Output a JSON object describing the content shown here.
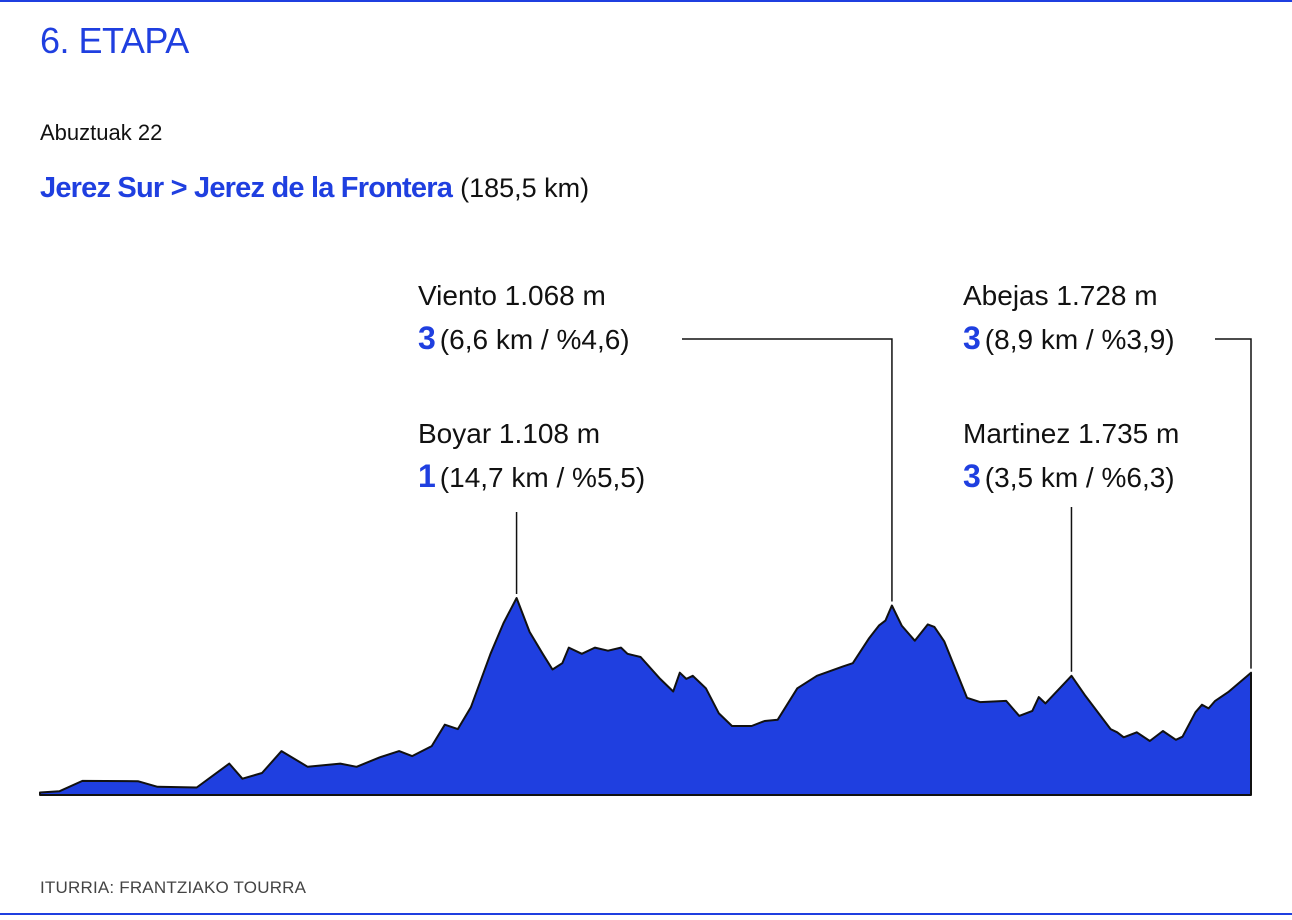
{
  "title": "6. ETAPA",
  "date": "Abuztuak 22",
  "route": {
    "name": "Jerez Sur > Jerez de la Frontera",
    "distance": "(185,5 km)"
  },
  "source": "ITURRIA: FRANTZIAKO TOURRA",
  "colors": {
    "accent": "#1f3fe0",
    "fill": "#1f3fe0",
    "text": "#111111"
  },
  "climbs": [
    {
      "name": "Viento 1.068 m",
      "category": "3",
      "details": "(6,6 km / %4,6)"
    },
    {
      "name": "Boyar 1.108 m",
      "category": "1",
      "details": "(14,7 km / %5,5)"
    },
    {
      "name": "Abejas 1.728 m",
      "category": "3",
      "details": "(8,9 km / %3,9)"
    },
    {
      "name": "Martinez 1.735 m",
      "category": "3",
      "details": "(3,5 km / %6,3)"
    }
  ],
  "chart_data": {
    "type": "area",
    "title": "6. ETAPA",
    "xlabel": "",
    "ylabel": "",
    "xlim": [
      0,
      185.5
    ],
    "grid": false,
    "series": [
      {
        "values": [
          [
            0,
            40
          ],
          [
            3,
            60
          ],
          [
            6.5,
            225
          ],
          [
            15,
            220
          ],
          [
            18,
            130
          ],
          [
            24,
            120
          ],
          [
            29,
            500
          ],
          [
            31,
            260
          ],
          [
            34,
            350
          ],
          [
            37,
            700
          ],
          [
            41,
            450
          ],
          [
            46,
            500
          ],
          [
            48.5,
            450
          ],
          [
            52,
            600
          ],
          [
            55,
            700
          ],
          [
            57,
            620
          ],
          [
            60,
            780
          ],
          [
            62,
            1120
          ],
          [
            64,
            1050
          ],
          [
            66,
            1400
          ],
          [
            69,
            2250
          ],
          [
            71,
            2740
          ],
          [
            73,
            3140
          ],
          [
            75,
            2600
          ],
          [
            77,
            2250
          ],
          [
            78.5,
            2000
          ],
          [
            80,
            2100
          ],
          [
            81,
            2350
          ],
          [
            83,
            2250
          ],
          [
            85,
            2350
          ],
          [
            87,
            2300
          ],
          [
            89,
            2350
          ],
          [
            90,
            2250
          ],
          [
            92,
            2200
          ],
          [
            95,
            1850
          ],
          [
            97,
            1650
          ],
          [
            98,
            1950
          ],
          [
            99,
            1850
          ],
          [
            100,
            1900
          ],
          [
            101,
            1800
          ],
          [
            102,
            1700
          ],
          [
            104,
            1300
          ],
          [
            106,
            1100
          ],
          [
            109,
            1100
          ],
          [
            111,
            1180
          ],
          [
            113,
            1200
          ],
          [
            116,
            1700
          ],
          [
            119,
            1900
          ],
          [
            123,
            2050
          ],
          [
            124.5,
            2100
          ],
          [
            127,
            2500
          ],
          [
            128.5,
            2700
          ],
          [
            129.5,
            2780
          ],
          [
            130.5,
            3020
          ],
          [
            132,
            2700
          ],
          [
            134,
            2460
          ],
          [
            136,
            2720
          ],
          [
            137,
            2680
          ],
          [
            138.5,
            2450
          ],
          [
            142,
            1550
          ],
          [
            144,
            1480
          ],
          [
            148,
            1500
          ],
          [
            150,
            1260
          ],
          [
            152,
            1340
          ],
          [
            153,
            1560
          ],
          [
            154,
            1460
          ],
          [
            158,
            1900
          ],
          [
            160,
            1600
          ],
          [
            164,
            1050
          ],
          [
            165,
            1000
          ],
          [
            166,
            920
          ],
          [
            168,
            1000
          ],
          [
            170,
            860
          ],
          [
            172,
            1020
          ],
          [
            174,
            880
          ],
          [
            175,
            930
          ],
          [
            177,
            1320
          ],
          [
            178,
            1440
          ],
          [
            179,
            1380
          ],
          [
            180,
            1500
          ],
          [
            182,
            1640
          ],
          [
            185.5,
            1950
          ]
        ]
      }
    ],
    "annotations": [
      {
        "label": "Boyar 1.108 m",
        "x": 73,
        "y": 3140
      },
      {
        "label": "Viento 1.068 m",
        "x": 130.5,
        "y": 3020
      },
      {
        "label": "Martinez 1.735 m",
        "x": 158,
        "y": 1900
      },
      {
        "label": "Abejas 1.728 m",
        "x": 185.5,
        "y": 1950
      }
    ]
  }
}
